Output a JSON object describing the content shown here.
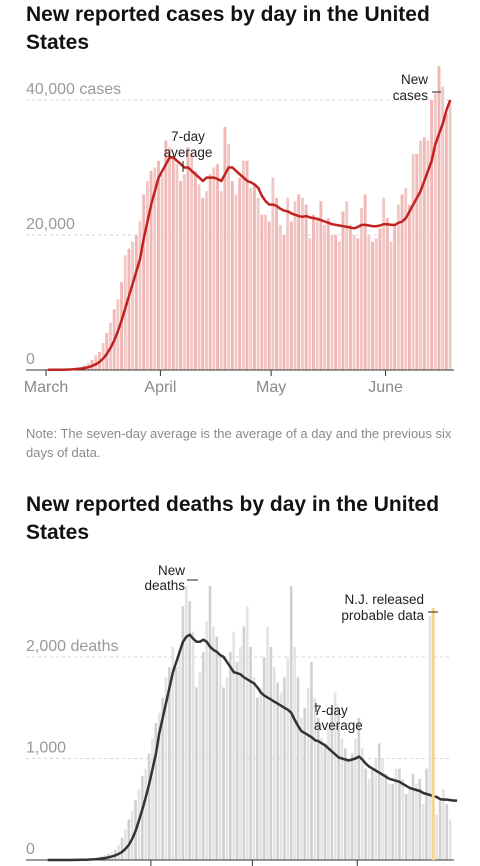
{
  "cases": {
    "title": "New reported cases by day in the United States",
    "note": "Note: The seven-day average is the average of a day and the previous six days of data.",
    "y_labels": [
      "40,000 cases",
      "20,000",
      "0"
    ],
    "x_labels": [
      "March",
      "April",
      "May",
      "June"
    ],
    "avg_annotation": [
      "7-day",
      "average"
    ],
    "bar_annotation": [
      "New",
      "cases"
    ],
    "colors": {
      "bar": "#f2b6b4",
      "bar_alt": "#efc9c6",
      "line": "#c0231f",
      "baseline": "#333333"
    }
  },
  "deaths": {
    "title": "New reported deaths by day in the United States",
    "y_labels": [
      "2,000 deaths",
      "1,000",
      "0"
    ],
    "bar_annotation": [
      "New",
      "deaths"
    ],
    "avg_annotation": [
      "7-day",
      "average"
    ],
    "event_annotation": [
      "N.J. released",
      "probable data"
    ],
    "colors": {
      "bar": "#d0d0d0",
      "bar_alt": "#e3e3e3",
      "line": "#333333",
      "event": "#f5d58a",
      "baseline": "#333333"
    }
  },
  "chart_data": [
    {
      "type": "bar",
      "title": "New reported cases by day in the United States",
      "xlabel": "",
      "ylabel": "",
      "ylim": [
        0,
        44000
      ],
      "yticks": [
        0,
        20000,
        40000
      ],
      "x_ticks": [
        "March",
        "April",
        "May",
        "June"
      ],
      "x_start": "2020-03-01",
      "series": [
        {
          "name": "New cases",
          "values": [
            20,
            30,
            50,
            70,
            90,
            120,
            200,
            250,
            400,
            500,
            700,
            1000,
            1500,
            2200,
            2700,
            4000,
            5500,
            7000,
            9000,
            10500,
            13000,
            17000,
            18000,
            19000,
            20000,
            22000,
            26000,
            28000,
            29500,
            30000,
            31000,
            29000,
            34000,
            33000,
            31500,
            30500,
            28000,
            29000,
            33000,
            32000,
            29500,
            27500,
            25500,
            26500,
            29000,
            30000,
            30500,
            26500,
            36000,
            33500,
            28000,
            26000,
            28500,
            31000,
            31000,
            27000,
            27500,
            25500,
            23000,
            23000,
            22000,
            28500,
            25500,
            21500,
            20000,
            25500,
            22000,
            25000,
            26000,
            25500,
            24500,
            19500,
            23000,
            22500,
            25000,
            21500,
            22500,
            20000,
            20000,
            19000,
            23500,
            25000,
            21500,
            20000,
            19500,
            24000,
            26000,
            20000,
            19000,
            19500,
            21000,
            25500,
            22500,
            19000,
            21500,
            24500,
            26000,
            27000,
            24500,
            32000,
            32000,
            34000,
            34500,
            34000,
            40000,
            41000,
            45000,
            42000,
            38000,
            40000
          ]
        },
        {
          "name": "7-day average",
          "values": [
            20,
            25,
            30,
            35,
            45,
            60,
            80,
            110,
            150,
            210,
            300,
            420,
            600,
            850,
            1200,
            1700,
            2400,
            3300,
            4400,
            5800,
            7400,
            9200,
            11000,
            12800,
            14600,
            16500,
            19500,
            22000,
            24500,
            26500,
            28500,
            29500,
            30500,
            31500,
            31500,
            31000,
            30500,
            30000,
            30000,
            29500,
            29000,
            28500,
            28000,
            28500,
            28500,
            28500,
            28300,
            28000,
            29000,
            30000,
            30000,
            29500,
            29000,
            28500,
            28000,
            27800,
            27500,
            27000,
            25800,
            25000,
            24500,
            24500,
            24300,
            23900,
            23600,
            23500,
            23200,
            23000,
            22800,
            22700,
            22800,
            22600,
            22500,
            22400,
            22200,
            22000,
            21800,
            21600,
            21500,
            21400,
            21300,
            21200,
            21100,
            21000,
            21200,
            21500,
            21500,
            21400,
            21300,
            21300,
            21400,
            21600,
            21600,
            21500,
            21500,
            21800,
            22000,
            22500,
            23500,
            24500,
            25500,
            26500,
            28000,
            29500,
            31000,
            33500,
            35000,
            36500,
            38500,
            40000
          ]
        }
      ]
    },
    {
      "type": "bar",
      "title": "New reported deaths by day in the United States",
      "xlabel": "",
      "ylabel": "",
      "ylim": [
        0,
        2800
      ],
      "yticks": [
        0,
        1000,
        2000
      ],
      "x_start": "2020-03-01",
      "series": [
        {
          "name": "New deaths",
          "values": [
            0,
            0,
            0,
            0,
            0,
            1,
            1,
            2,
            3,
            5,
            8,
            10,
            12,
            15,
            20,
            25,
            35,
            50,
            60,
            80,
            100,
            150,
            220,
            300,
            400,
            480,
            590,
            700,
            830,
            900,
            1050,
            1200,
            1350,
            1450,
            1600,
            1800,
            1900,
            2100,
            1900,
            2050,
            2500,
            2700,
            2550,
            2250,
            1700,
            1850,
            2050,
            2350,
            2700,
            2300,
            2200,
            2000,
            1700,
            1800,
            2050,
            2250,
            1950,
            2100,
            2300,
            2500,
            2100,
            1800,
            1600,
            1700,
            2000,
            2300,
            2100,
            1900,
            1750,
            1650,
            1800,
            2000,
            2700,
            2100,
            1800,
            1400,
            1500,
            1700,
            1950,
            1600,
            1400,
            1200,
            1150,
            1300,
            1500,
            1650,
            1500,
            1200,
            1100,
            1000,
            1050,
            1200,
            1400,
            1100,
            900,
            800,
            900,
            1000,
            1150,
            1000,
            850,
            750,
            750,
            900,
            900,
            800,
            650,
            700,
            850,
            750,
            800,
            550,
            900,
            2400,
            550,
            450,
            600,
            700,
            550,
            400
          ]
        },
        {
          "name": "7-day average",
          "values": [
            0,
            0,
            0,
            0,
            0,
            0,
            0,
            0,
            1,
            1,
            2,
            3,
            4,
            6,
            8,
            11,
            15,
            20,
            27,
            35,
            45,
            60,
            80,
            110,
            150,
            210,
            290,
            390,
            500,
            620,
            750,
            900,
            1050,
            1250,
            1400,
            1550,
            1700,
            1850,
            1950,
            2050,
            2150,
            2200,
            2220,
            2180,
            2150,
            2150,
            2170,
            2150,
            2100,
            2070,
            2050,
            2020,
            2000,
            1950,
            1900,
            1850,
            1840,
            1830,
            1800,
            1780,
            1760,
            1740,
            1700,
            1650,
            1620,
            1600,
            1580,
            1560,
            1540,
            1520,
            1500,
            1480,
            1450,
            1380,
            1320,
            1270,
            1250,
            1230,
            1210,
            1180,
            1170,
            1150,
            1130,
            1100,
            1070,
            1040,
            1010,
            1000,
            990,
            980,
            990,
            1000,
            1020,
            990,
            950,
            920,
            900,
            880,
            860,
            840,
            820,
            800,
            790,
            780,
            770,
            750,
            730,
            710,
            700,
            690,
            680,
            660,
            650,
            640,
            630,
            620,
            600,
            595,
            595,
            590,
            585,
            585
          ]
        }
      ]
    }
  ]
}
